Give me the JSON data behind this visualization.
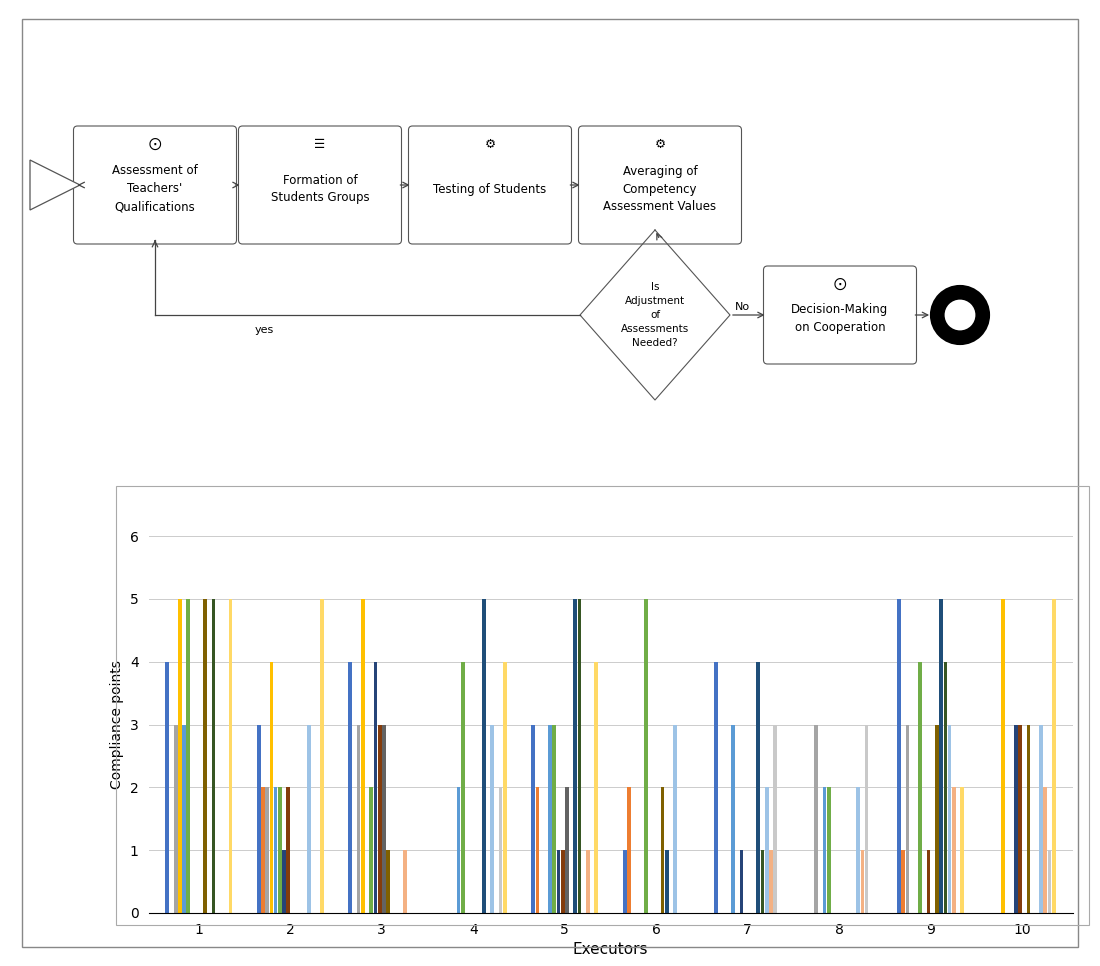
{
  "bar_series": {
    "1": [
      4,
      3,
      4,
      0,
      3,
      1,
      4,
      0,
      5,
      0
    ],
    "2": [
      0,
      2,
      0,
      0,
      2,
      2,
      0,
      0,
      1,
      0
    ],
    "3": [
      3,
      2,
      3,
      0,
      0,
      0,
      0,
      3,
      3,
      0
    ],
    "4": [
      5,
      4,
      5,
      0,
      0,
      0,
      0,
      0,
      0,
      5
    ],
    "5": [
      3,
      2,
      0,
      2,
      3,
      0,
      3,
      2,
      0,
      0
    ],
    "6": [
      5,
      2,
      2,
      4,
      3,
      5,
      0,
      2,
      4,
      0
    ],
    "7": [
      0,
      1,
      4,
      0,
      1,
      0,
      1,
      0,
      0,
      3
    ],
    "8": [
      0,
      2,
      3,
      0,
      1,
      0,
      0,
      0,
      1,
      3
    ],
    "9": [
      0,
      0,
      3,
      0,
      2,
      0,
      0,
      0,
      0,
      0
    ],
    "10": [
      5,
      0,
      1,
      0,
      0,
      2,
      0,
      0,
      3,
      3
    ],
    "11": [
      0,
      0,
      0,
      5,
      5,
      1,
      4,
      0,
      5,
      0
    ],
    "12": [
      5,
      0,
      0,
      0,
      5,
      0,
      1,
      0,
      4,
      0
    ],
    "13": [
      0,
      3,
      0,
      3,
      0,
      3,
      2,
      2,
      3,
      3
    ],
    "14": [
      0,
      0,
      1,
      0,
      1,
      0,
      1,
      1,
      2,
      2
    ],
    "15": [
      0,
      0,
      0,
      2,
      0,
      0,
      3,
      3,
      0,
      1
    ],
    "16": [
      5,
      5,
      0,
      4,
      4,
      0,
      0,
      0,
      2,
      5
    ]
  },
  "colors": {
    "1": "#4472C4",
    "2": "#ED7D31",
    "3": "#A5A5A5",
    "4": "#FFC000",
    "5": "#5B9BD5",
    "6": "#70AD47",
    "7": "#264478",
    "8": "#843C0C",
    "9": "#636363",
    "10": "#7F6000",
    "11": "#1F4E79",
    "12": "#375623",
    "13": "#9DC3E6",
    "14": "#F4B183",
    "15": "#C9C9C9",
    "16": "#FFD966"
  },
  "xlabel": "Executors",
  "ylabel": "Compliance points",
  "executors": [
    1,
    2,
    3,
    4,
    5,
    6,
    7,
    8,
    9,
    10
  ],
  "ylim": [
    0,
    6
  ],
  "yticks": [
    0,
    1,
    2,
    3,
    4,
    5,
    6
  ],
  "flow_boxes": [
    {
      "label": "Assessment of\nTeachers'\nQualifications",
      "icon": "⨀"
    },
    {
      "label": "Formation of\nStudents Groups",
      "icon": "☰"
    },
    {
      "label": "Testing of Students",
      "icon": "⚙"
    },
    {
      "label": "Averaging of\nCompetency\nAssessment Values",
      "icon": "⚙"
    },
    {
      "label": "Decision-Making\non Cooperation",
      "icon": "⨀"
    }
  ],
  "diamond_label": "Is\nAdjustment\nof\nAssessments\nNeeded?",
  "yes_label": "yes",
  "no_label": "No"
}
